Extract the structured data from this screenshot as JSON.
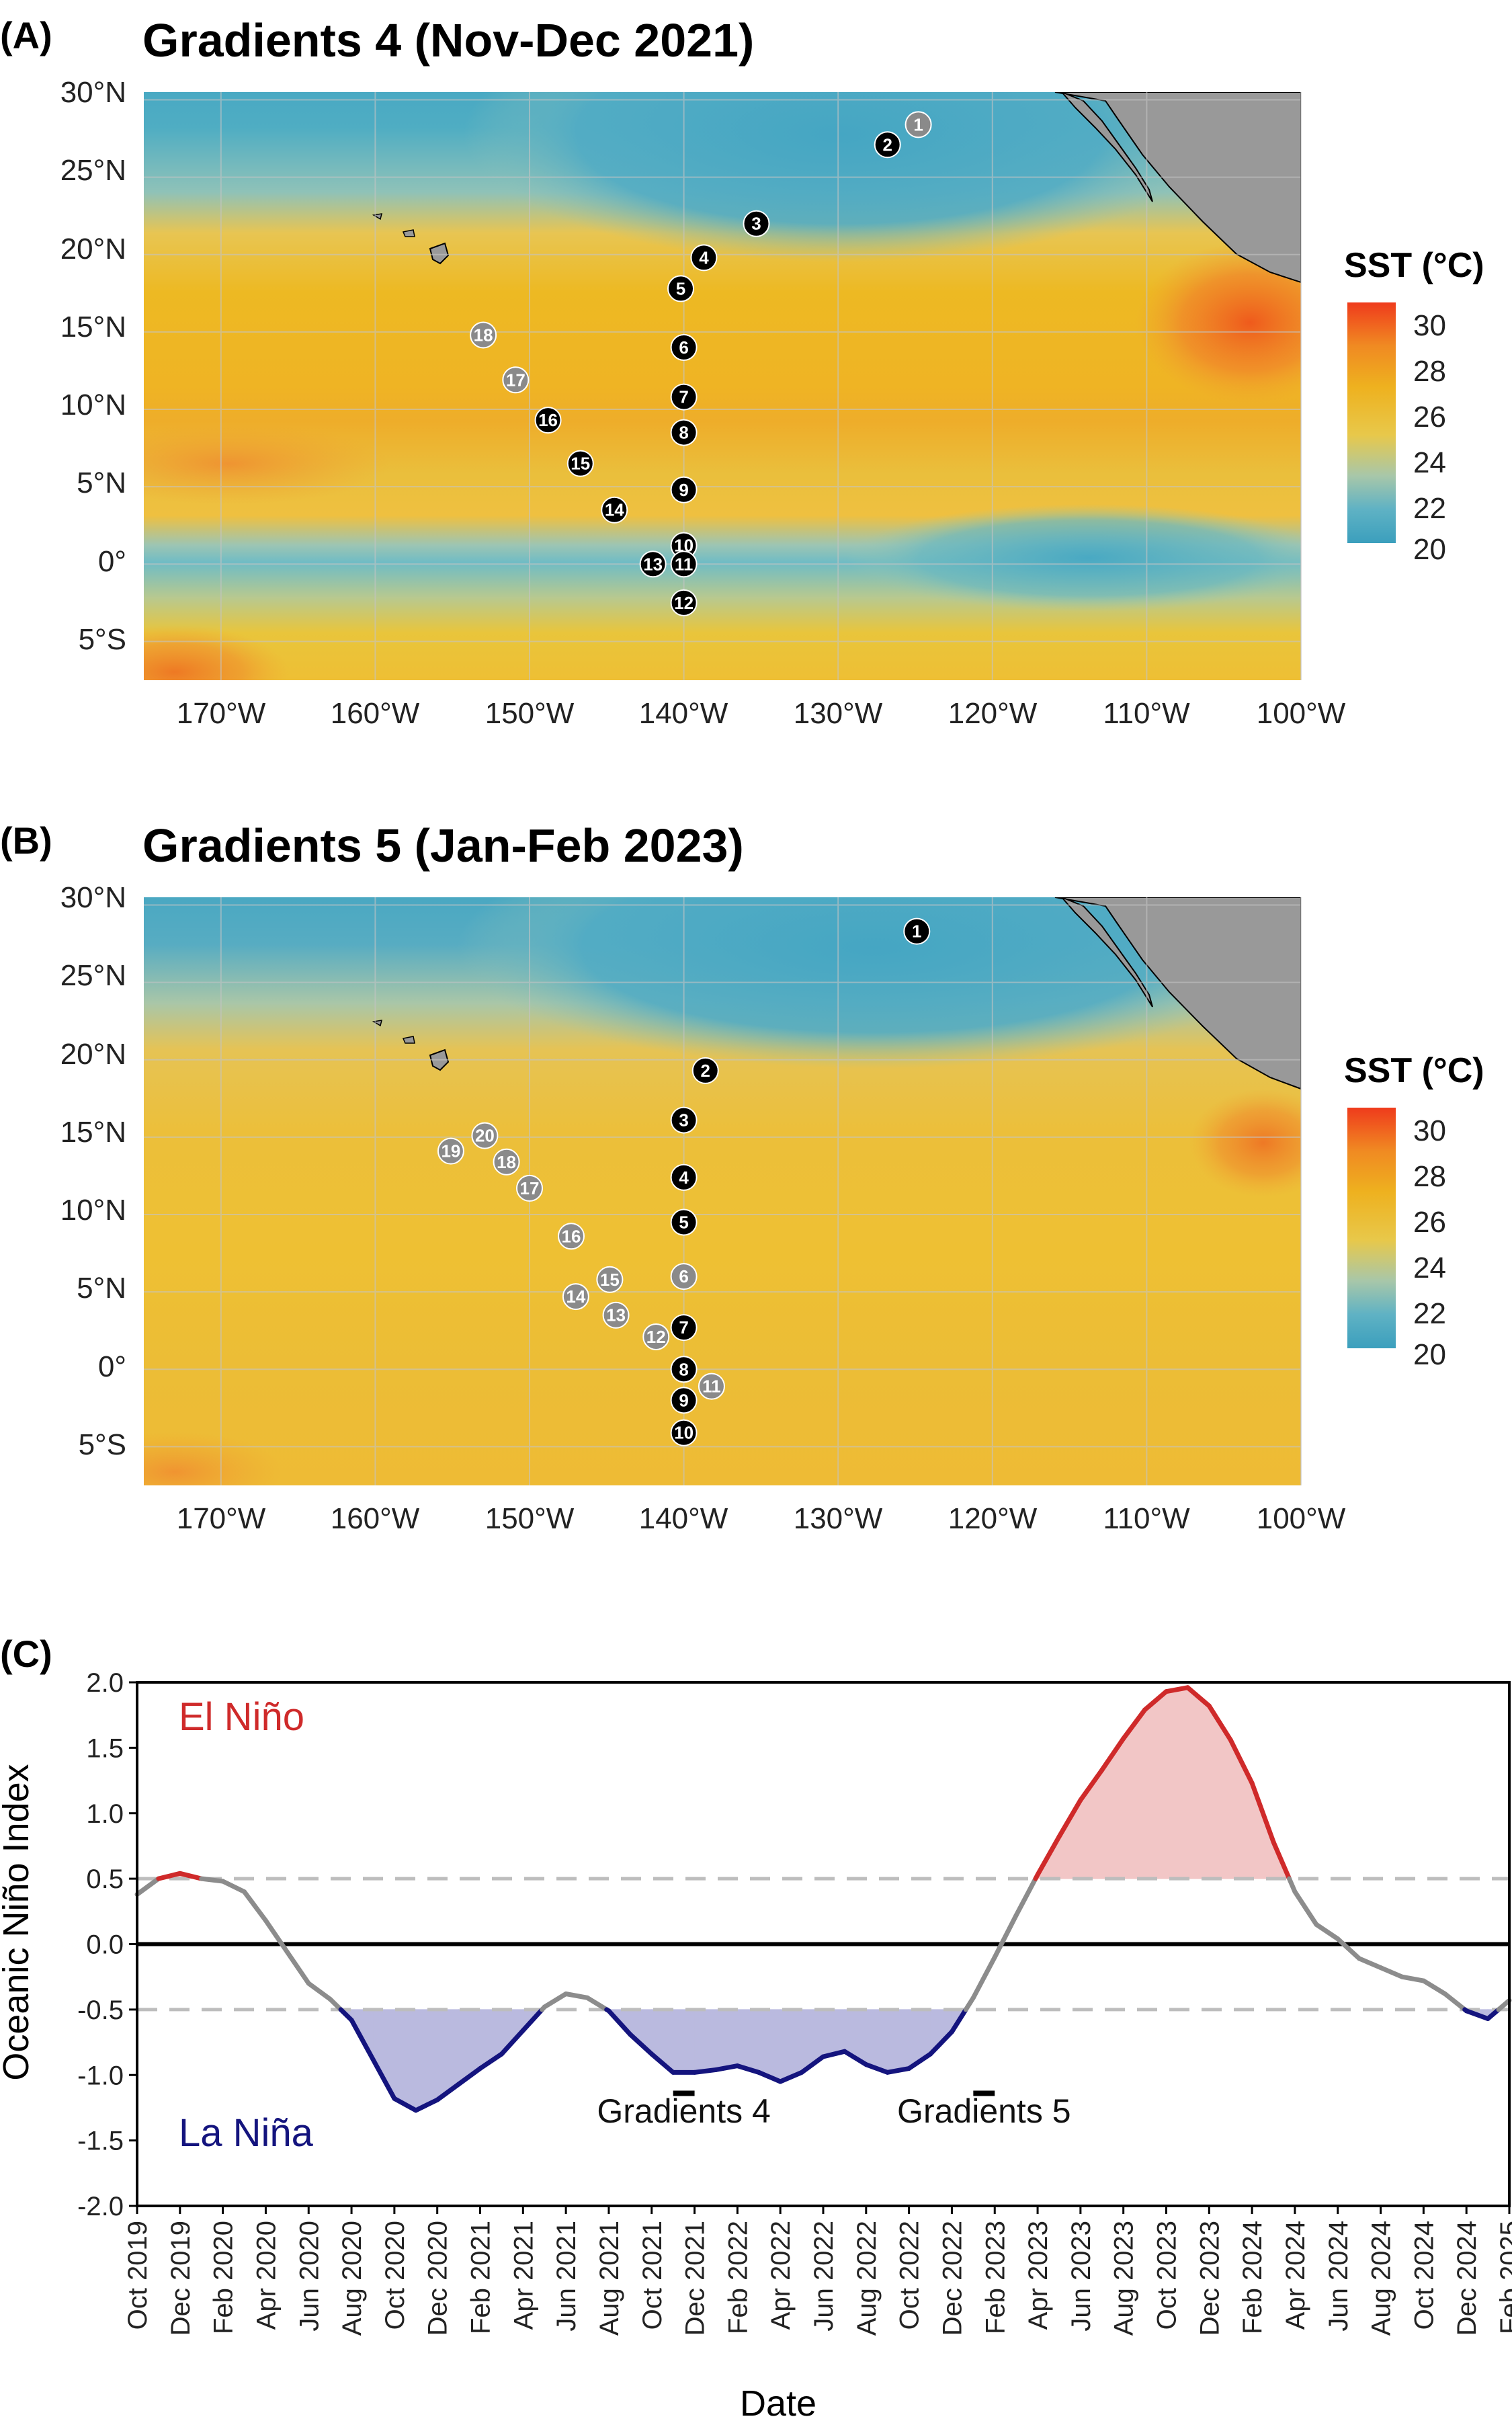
{
  "panel_a": {
    "letter": "(A)",
    "title": "Gradients 4 (Nov-Dec 2021)",
    "legend_title": "SST (°C)",
    "legend_ticks": [
      "30",
      "28",
      "26",
      "24",
      "22",
      "20"
    ],
    "lon_ticks": [
      "170°W",
      "160°W",
      "150°W",
      "140°W",
      "130°W",
      "120°W",
      "110°W",
      "100°W"
    ],
    "lat_ticks": [
      "30°N",
      "25°N",
      "20°N",
      "15°N",
      "10°N",
      "5°N",
      "0°",
      "5°S"
    ]
  },
  "panel_b": {
    "letter": "(B)",
    "title": "Gradients 5 (Jan-Feb 2023)",
    "legend_title": "SST (°C)",
    "legend_ticks": [
      "30",
      "28",
      "26",
      "24",
      "22",
      "20"
    ],
    "lon_ticks": [
      "170°W",
      "160°W",
      "150°W",
      "140°W",
      "130°W",
      "120°W",
      "110°W",
      "100°W"
    ],
    "lat_ticks": [
      "30°N",
      "25°N",
      "20°N",
      "15°N",
      "10°N",
      "5°N",
      "0°",
      "5°S"
    ]
  },
  "panel_c": {
    "letter": "(C)",
    "ylabel": "Oceanic Niño Index",
    "xlabel": "Date",
    "el_nino_label": "El Niño",
    "la_nina_label": "La Niña",
    "cruise_labels": [
      "Gradients 4",
      "Gradients 5"
    ]
  },
  "colors": {
    "el_nino": "#cf2a2a",
    "la_nina": "#14147e",
    "neutral": "#8c8c8c",
    "el_nino_fill": "#f2c6c6",
    "la_nina_fill": "#babadf",
    "land": "#999999",
    "station_black": "#000000",
    "station_gray": "#8a8a8a"
  },
  "chart_data": [
    {
      "type": "scatter",
      "title": "Gradients 4 (Nov-Dec 2021)",
      "xlim": [
        -175,
        -100
      ],
      "ylim": [
        -7.5,
        30.5
      ],
      "colorbar": {
        "label": "SST (°C)",
        "range": [
          20,
          30.5
        ]
      },
      "stations": [
        {
          "id": "1",
          "lon": -124.8,
          "lat": 28.4,
          "color": "gray"
        },
        {
          "id": "2",
          "lon": -126.8,
          "lat": 27.1,
          "color": "black"
        },
        {
          "id": "3",
          "lon": -135.3,
          "lat": 22.0,
          "color": "black"
        },
        {
          "id": "4",
          "lon": -138.7,
          "lat": 19.8,
          "color": "black"
        },
        {
          "id": "5",
          "lon": -140.2,
          "lat": 17.8,
          "color": "black"
        },
        {
          "id": "6",
          "lon": -140.0,
          "lat": 14.0,
          "color": "black"
        },
        {
          "id": "7",
          "lon": -140.0,
          "lat": 10.8,
          "color": "black"
        },
        {
          "id": "8",
          "lon": -140.0,
          "lat": 8.5,
          "color": "black"
        },
        {
          "id": "9",
          "lon": -140.0,
          "lat": 4.8,
          "color": "black"
        },
        {
          "id": "10",
          "lon": -140.0,
          "lat": 1.2,
          "color": "black"
        },
        {
          "id": "11",
          "lon": -140.0,
          "lat": 0.0,
          "color": "black"
        },
        {
          "id": "12",
          "lon": -140.0,
          "lat": -2.5,
          "color": "black"
        },
        {
          "id": "13",
          "lon": -142.0,
          "lat": 0.0,
          "color": "black"
        },
        {
          "id": "14",
          "lon": -144.5,
          "lat": 3.5,
          "color": "black"
        },
        {
          "id": "15",
          "lon": -146.7,
          "lat": 6.5,
          "color": "black"
        },
        {
          "id": "16",
          "lon": -148.8,
          "lat": 9.3,
          "color": "black"
        },
        {
          "id": "17",
          "lon": -150.9,
          "lat": 11.9,
          "color": "gray"
        },
        {
          "id": "18",
          "lon": -153.0,
          "lat": 14.8,
          "color": "gray"
        }
      ]
    },
    {
      "type": "scatter",
      "title": "Gradients 5 (Jan-Feb 2023)",
      "xlim": [
        -175,
        -100
      ],
      "ylim": [
        -7.5,
        30.5
      ],
      "colorbar": {
        "label": "SST (°C)",
        "range": [
          20,
          30.5
        ]
      },
      "stations": [
        {
          "id": "1",
          "lon": -124.9,
          "lat": 28.3,
          "color": "black"
        },
        {
          "id": "2",
          "lon": -138.6,
          "lat": 19.3,
          "color": "black"
        },
        {
          "id": "3",
          "lon": -140.0,
          "lat": 16.1,
          "color": "black"
        },
        {
          "id": "4",
          "lon": -140.0,
          "lat": 12.4,
          "color": "black"
        },
        {
          "id": "5",
          "lon": -140.0,
          "lat": 9.5,
          "color": "black"
        },
        {
          "id": "6",
          "lon": -140.0,
          "lat": 6.0,
          "color": "gray"
        },
        {
          "id": "7",
          "lon": -140.0,
          "lat": 2.7,
          "color": "black"
        },
        {
          "id": "8",
          "lon": -140.0,
          "lat": 0.0,
          "color": "black"
        },
        {
          "id": "9",
          "lon": -140.0,
          "lat": -2.0,
          "color": "black"
        },
        {
          "id": "10",
          "lon": -140.0,
          "lat": -4.1,
          "color": "black"
        },
        {
          "id": "11",
          "lon": -138.2,
          "lat": -1.1,
          "color": "gray"
        },
        {
          "id": "12",
          "lon": -141.8,
          "lat": 2.1,
          "color": "gray"
        },
        {
          "id": "13",
          "lon": -144.4,
          "lat": 3.5,
          "color": "gray"
        },
        {
          "id": "14",
          "lon": -147.0,
          "lat": 4.7,
          "color": "gray"
        },
        {
          "id": "15",
          "lon": -144.8,
          "lat": 5.8,
          "color": "gray"
        },
        {
          "id": "16",
          "lon": -147.3,
          "lat": 8.6,
          "color": "gray"
        },
        {
          "id": "17",
          "lon": -150.0,
          "lat": 11.7,
          "color": "gray"
        },
        {
          "id": "18",
          "lon": -151.5,
          "lat": 13.4,
          "color": "gray"
        },
        {
          "id": "19",
          "lon": -155.1,
          "lat": 14.1,
          "color": "gray"
        },
        {
          "id": "20",
          "lon": -152.9,
          "lat": 15.1,
          "color": "gray"
        }
      ]
    },
    {
      "type": "line",
      "xlabel": "Date",
      "ylabel": "Oceanic Niño Index",
      "ylim": [
        -2.0,
        2.0
      ],
      "yticks": [
        "2.0",
        "1.5",
        "1.0",
        "0.5",
        "0.0",
        "-0.5",
        "-1.0",
        "-1.5",
        "-2.0"
      ],
      "reference_lines": [
        0.5,
        0.0,
        -0.5
      ],
      "x_tick_labels": [
        "Oct 2019",
        "Dec 2019",
        "Feb 2020",
        "Apr 2020",
        "Jun 2020",
        "Aug 2020",
        "Oct 2020",
        "Dec 2020",
        "Feb 2021",
        "Apr 2021",
        "Jun 2021",
        "Aug 2021",
        "Oct 2021",
        "Dec 2021",
        "Feb 2022",
        "Apr 2022",
        "Jun 2022",
        "Aug 2022",
        "Oct 2022",
        "Dec 2022",
        "Feb 2023",
        "Apr 2023",
        "Jun 2023",
        "Aug 2023",
        "Oct 2023",
        "Dec 2023",
        "Feb 2024",
        "Apr 2024",
        "Jun 2024",
        "Aug 2024",
        "Oct 2024",
        "Dec 2024",
        "Feb 2025"
      ],
      "series": [
        {
          "values": [
            0.38,
            0.5,
            0.54,
            0.5,
            0.48,
            0.4,
            0.18,
            -0.06,
            -0.3,
            -0.42,
            -0.58,
            -0.88,
            -1.18,
            -1.27,
            -1.19,
            -1.07,
            -0.95,
            -0.84,
            -0.66,
            -0.48,
            -0.38,
            -0.41,
            -0.51,
            -0.69,
            -0.84,
            -0.98,
            -0.98,
            -0.96,
            -0.93,
            -0.98,
            -1.05,
            -0.98,
            -0.86,
            -0.82,
            -0.92,
            -0.98,
            -0.95,
            -0.84,
            -0.67,
            -0.41,
            -0.1,
            0.22,
            0.53,
            0.82,
            1.1,
            1.33,
            1.57,
            1.79,
            1.93,
            1.96,
            1.82,
            1.56,
            1.23,
            0.78,
            0.4,
            0.15,
            0.04,
            -0.11,
            -0.18,
            -0.25,
            -0.28,
            -0.38,
            -0.51,
            -0.57,
            -0.43
          ]
        }
      ],
      "cruise_periods": [
        {
          "label": "Gradients 4",
          "start": "Nov 2021",
          "end": "Dec 2021"
        },
        {
          "label": "Gradients 5",
          "start": "Jan 2023",
          "end": "Feb 2023"
        }
      ]
    }
  ]
}
